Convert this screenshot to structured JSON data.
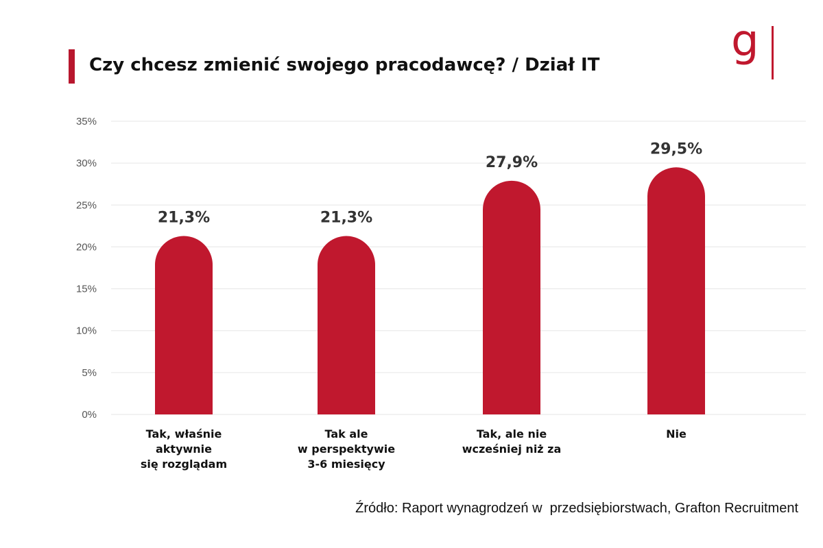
{
  "title": "Czy chcesz zmienić swojego pracodawcę? / Dział IT",
  "logo": {
    "text": "g",
    "color": "#c0182e"
  },
  "source": "Źródło: Raport wynagrodzeń w  przedsiębiorstwach, Grafton Recruitment",
  "colors": {
    "accent": "#b8172e",
    "bar": "#c0182e",
    "grid": "#e6e6e6",
    "text": "#111111",
    "tick": "#555555"
  },
  "chart_data": {
    "type": "bar",
    "categories": [
      [
        "Tak, właśnie",
        "aktywnie",
        "się rozglądam"
      ],
      [
        "Tak ale",
        "w perspektywie",
        "3-6 miesięcy"
      ],
      [
        "Tak, ale nie",
        "wcześniej niż za"
      ],
      [
        "Nie"
      ]
    ],
    "values": [
      21.3,
      21.3,
      27.9,
      29.5
    ],
    "data_labels": [
      "21,3%",
      "21,3%",
      "27,9%",
      "29,5%"
    ],
    "ylim": [
      0,
      35
    ],
    "yticks": [
      0,
      5,
      10,
      15,
      20,
      25,
      30,
      35
    ],
    "ytick_labels": [
      "0%",
      "5%",
      "10%",
      "15%",
      "20%",
      "25%",
      "30%",
      "35%"
    ],
    "grid": true,
    "bar_shape": "rounded-top",
    "legend": "none"
  }
}
